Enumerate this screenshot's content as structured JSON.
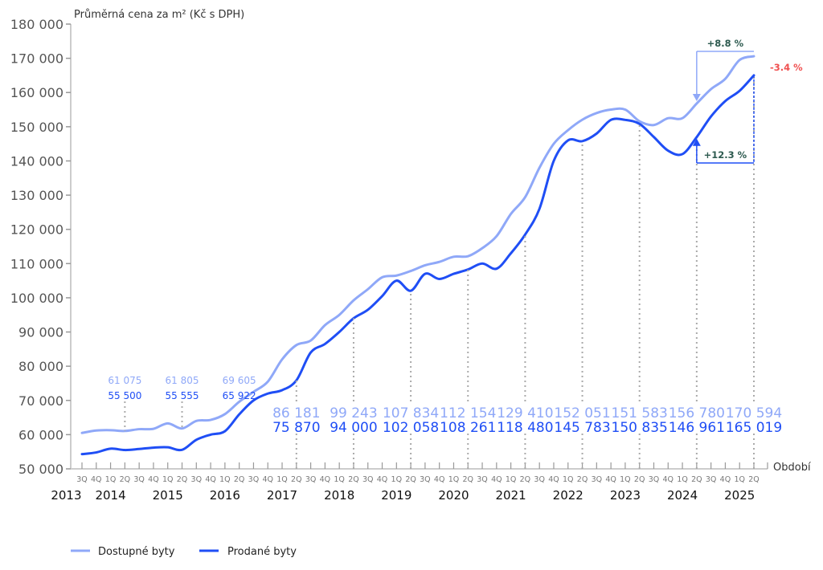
{
  "chart_data": {
    "type": "line",
    "ylabel": "Průměrná cena za m² (Kč s DPH)",
    "xlabel": "Období",
    "ylim": [
      50000,
      180000
    ],
    "yticks": [
      "50 000",
      "60 000",
      "70 000",
      "80 000",
      "90 000",
      "100 000",
      "110 000",
      "120 000",
      "130 000",
      "140 000",
      "150 000",
      "160 000",
      "170 000",
      "180 000"
    ],
    "quarters": [
      "3Q",
      "4Q",
      "1Q",
      "2Q",
      "3Q",
      "4Q",
      "1Q",
      "2Q",
      "3Q",
      "4Q",
      "1Q",
      "2Q",
      "3Q",
      "4Q",
      "1Q",
      "2Q",
      "3Q",
      "4Q",
      "1Q",
      "2Q",
      "3Q",
      "4Q",
      "1Q",
      "2Q",
      "3Q",
      "4Q",
      "1Q",
      "2Q",
      "3Q",
      "4Q",
      "1Q",
      "2Q",
      "3Q",
      "4Q",
      "1Q",
      "2Q",
      "3Q",
      "4Q",
      "1Q",
      "2Q",
      "3Q",
      "4Q",
      "1Q",
      "2Q",
      "3Q",
      "4Q",
      "1Q",
      "2Q"
    ],
    "years": [
      {
        "label": "2013",
        "q": -1.1
      },
      {
        "label": "2014",
        "q": 2
      },
      {
        "label": "2015",
        "q": 6
      },
      {
        "label": "2016",
        "q": 10
      },
      {
        "label": "2017",
        "q": 14
      },
      {
        "label": "2018",
        "q": 18
      },
      {
        "label": "2019",
        "q": 22
      },
      {
        "label": "2020",
        "q": 26
      },
      {
        "label": "2021",
        "q": 30
      },
      {
        "label": "2022",
        "q": 34
      },
      {
        "label": "2023",
        "q": 38
      },
      {
        "label": "2024",
        "q": 42
      },
      {
        "label": "2025",
        "q": 46
      }
    ],
    "series": [
      {
        "name": "Dostupné byty",
        "color": "#8fa8f8",
        "values": [
          60500,
          61200,
          61300,
          61075,
          61600,
          61700,
          63300,
          61805,
          64000,
          64300,
          66000,
          69605,
          72500,
          75500,
          82000,
          86181,
          87500,
          92000,
          95000,
          99243,
          102500,
          106000,
          106500,
          107834,
          109500,
          110500,
          112000,
          112154,
          114500,
          118000,
          124500,
          129410,
          138000,
          145000,
          149000,
          152051,
          154000,
          155000,
          155000,
          151583,
          150500,
          152500,
          152500,
          156780,
          161000,
          164000,
          169500,
          170594
        ]
      },
      {
        "name": "Prodané byty",
        "color": "#1f4ef5",
        "values": [
          54300,
          54800,
          55900,
          55500,
          55800,
          56200,
          56300,
          55555,
          58500,
          60000,
          61000,
          65922,
          70000,
          72000,
          73000,
          75870,
          84000,
          86500,
          90000,
          94000,
          96500,
          100500,
          105000,
          102058,
          107000,
          105500,
          107000,
          108261,
          110000,
          108500,
          113000,
          118480,
          126000,
          140000,
          146000,
          145783,
          148000,
          152000,
          152000,
          150835,
          147000,
          143000,
          142000,
          146961,
          153000,
          157500,
          160500,
          165019
        ]
      }
    ],
    "point_labels": [
      {
        "q": 3,
        "top": "61 075",
        "bottom": "55 500",
        "style": "small"
      },
      {
        "q": 7,
        "top": "61 805",
        "bottom": "55 555",
        "style": "small"
      },
      {
        "q": 11,
        "top": "69 605",
        "bottom": "65 922",
        "style": "small"
      },
      {
        "q": 15,
        "top": "86 181",
        "bottom": "75 870",
        "style": "large"
      },
      {
        "q": 19,
        "top": "99 243",
        "bottom": "94 000",
        "style": "large"
      },
      {
        "q": 23,
        "top": "107 834",
        "bottom": "102 058",
        "style": "large"
      },
      {
        "q": 27,
        "top": "112 154",
        "bottom": "108 261",
        "style": "large"
      },
      {
        "q": 31,
        "top": "129 410",
        "bottom": "118 480",
        "style": "large"
      },
      {
        "q": 35,
        "top": "152 051",
        "bottom": "145 783",
        "style": "large"
      },
      {
        "q": 39,
        "top": "151 583",
        "bottom": "150 835",
        "style": "large"
      },
      {
        "q": 43,
        "top": "156 780",
        "bottom": "146 961",
        "style": "large"
      },
      {
        "q": 47,
        "top": "170 594",
        "bottom": "165 019",
        "style": "large"
      }
    ],
    "annotations": {
      "available_change": "+8.8 %",
      "gap_change": "-3.4 %",
      "sold_change": "+12.3 %",
      "green": "#2d5a4f",
      "red": "#f05050"
    }
  }
}
